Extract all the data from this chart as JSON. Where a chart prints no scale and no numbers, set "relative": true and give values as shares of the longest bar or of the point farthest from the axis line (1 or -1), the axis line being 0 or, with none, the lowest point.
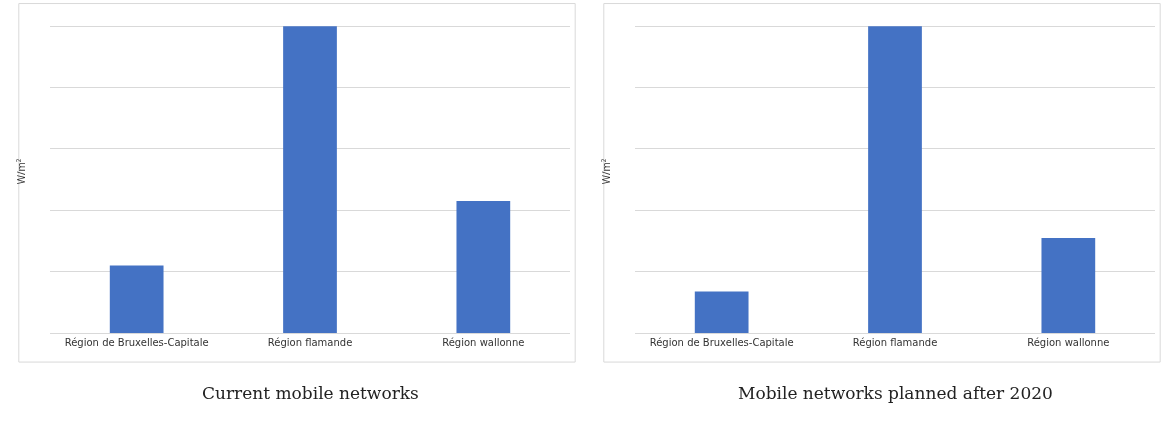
{
  "chart_data": [
    {
      "type": "bar",
      "relative": true,
      "ylabel": "W/m²",
      "categories": [
        "Région de Bruxelles-Capitale",
        "Région flamande",
        "Région wallonne"
      ],
      "values": [
        0.22,
        1,
        0.43
      ],
      "color": "#4472c4",
      "grid": "y",
      "annotations": [
        "Current mobile networks"
      ]
    },
    {
      "type": "bar",
      "relative": true,
      "ylabel": "W/m²",
      "categories": [
        "Région de Bruxelles-Capitale",
        "Région flamande",
        "Région wallonne"
      ],
      "values": [
        0.135,
        1,
        0.31
      ],
      "color": "#4472c4",
      "grid": "y",
      "annotations": [
        "Mobile networks planned after 2020"
      ]
    }
  ]
}
